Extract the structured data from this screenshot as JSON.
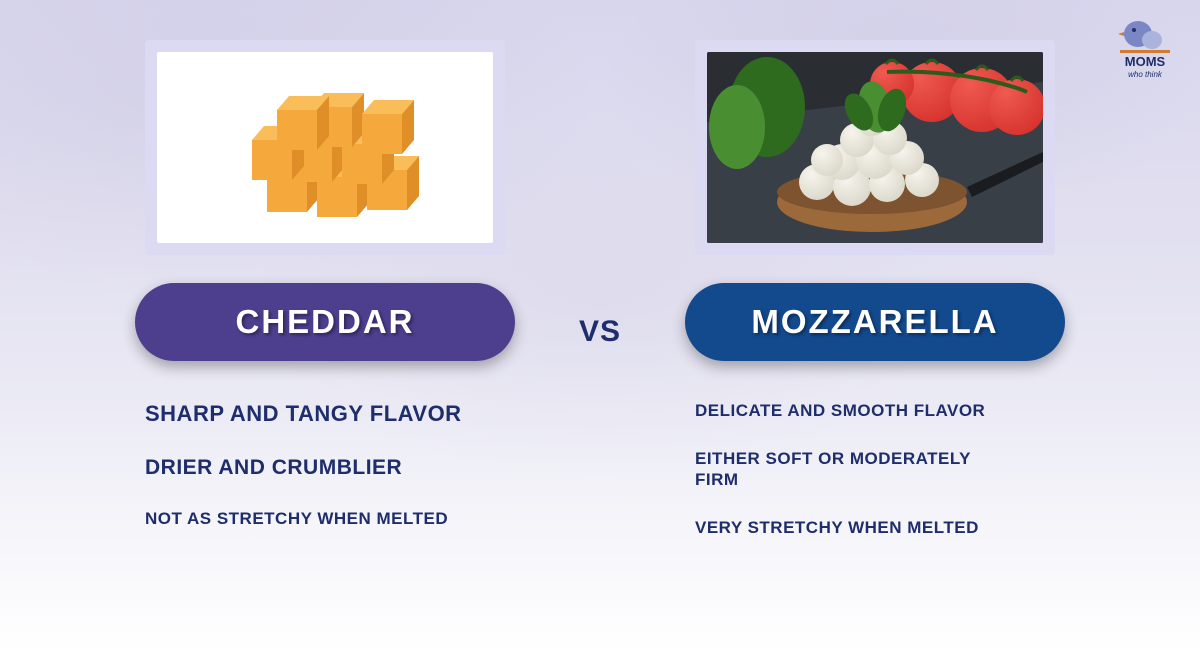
{
  "logo": {
    "line1": "MOMS",
    "line2": "who think",
    "bird_color": "#7b86c4",
    "body_color": "#aab3dd",
    "text_color": "#1e2d6b",
    "underline_color": "#d27a2f"
  },
  "vs_label": "VS",
  "vs_color": "#1e2d6b",
  "left": {
    "title": "CHEDDAR",
    "pill_color": "#4e3e8e",
    "bullets": [
      {
        "text": "SHARP AND TANGY FLAVOR",
        "size": "large"
      },
      {
        "text": "DRIER AND CRUMBLIER",
        "size": "medium"
      },
      {
        "text": "NOT AS STRETCHY WHEN MELTED",
        "size": "small"
      }
    ],
    "image": {
      "bg": "#ffffff",
      "cube_fill": "#f5a93d",
      "cube_top": "#f9bd5a",
      "cube_side": "#e08f28"
    }
  },
  "right": {
    "title": "MOZZARELLA",
    "pill_color": "#134a8e",
    "bullets": [
      {
        "text": "DELICATE AND SMOOTH FLAVOR",
        "size": "small"
      },
      {
        "text": "EITHER SOFT OR MODERATELY FIRM",
        "size": "multi"
      },
      {
        "text": "VERY STRETCHY WHEN MELTED",
        "size": "small"
      }
    ],
    "image": {
      "slate_from": "#2a2e33",
      "slate_to": "#3b4148",
      "bowl_color": "#9c6a3a",
      "ball_color": "#f6f4ec",
      "ball_shadow": "#d9d5c8",
      "tomato_color": "#d42f2a",
      "tomato_highlight": "#ef5a50",
      "stem_color": "#2e5a1e",
      "basil_color": "#2e6b1f",
      "basil_light": "#4a8e32"
    }
  },
  "text_color": "#1e2d6b",
  "frame_color": "#dcdaf2"
}
